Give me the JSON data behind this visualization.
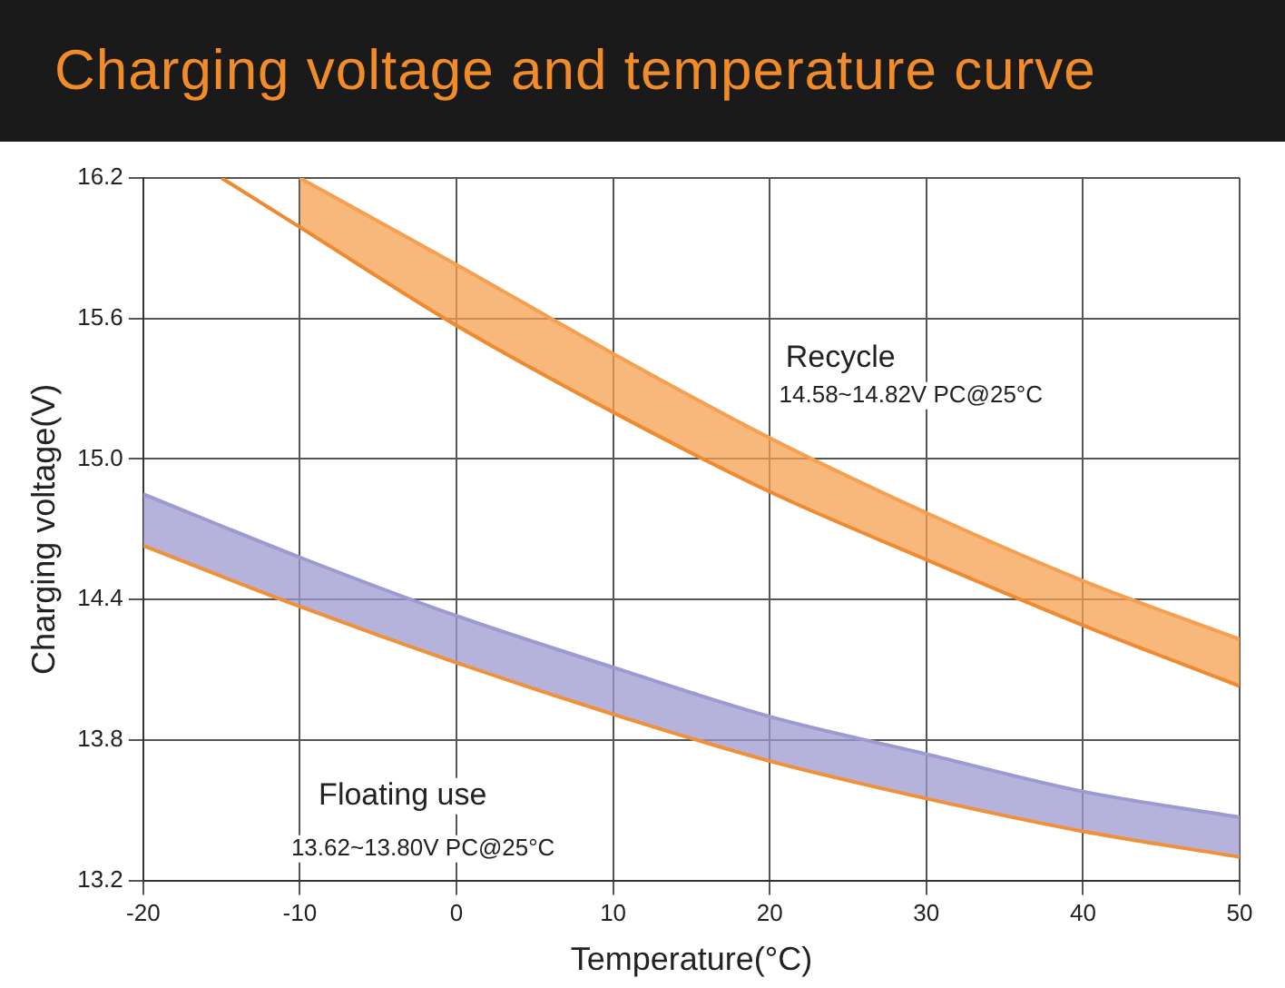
{
  "chart_data": {
    "type": "line",
    "title": "Charging voltage and temperature curve",
    "xlabel": "Temperature(°C)",
    "ylabel": "Charging voltage(V)",
    "xlim": [
      -20,
      50
    ],
    "xticks": [
      -20,
      -10,
      0,
      10,
      20,
      30,
      40,
      50
    ],
    "ylim": [
      13.2,
      16.2
    ],
    "yticks": [
      {
        "value": 13.2,
        "label": "13.2"
      },
      {
        "value": 13.8,
        "label": "13.8"
      },
      {
        "value": 14.4,
        "label": "14.4"
      },
      {
        "value": 15.0,
        "label": "15.0"
      },
      {
        "value": 15.6,
        "label": "15.6"
      },
      {
        "value": 16.2,
        "label": "16.2"
      }
    ],
    "grid": true,
    "legend": false,
    "marker": "none",
    "series": [
      {
        "type": "line",
        "color": "#f08a30",
        "x": [
          -15,
          -10,
          0,
          10,
          20,
          30,
          40,
          50
        ],
        "values": [
          16.2,
          15.99,
          15.57,
          15.2,
          14.86,
          14.57,
          14.29,
          14.03
        ]
      },
      {
        "type": "area",
        "color": "#f5a050",
        "x": [
          -10,
          0,
          10,
          20,
          30,
          40,
          50
        ],
        "values": [
          16.2,
          15.83,
          15.45,
          15.09,
          14.77,
          14.48,
          14.23
        ]
      },
      {
        "type": "line",
        "color": "#f0913a",
        "x": [
          -20,
          -10,
          0,
          10,
          20,
          30,
          40,
          50
        ],
        "values": [
          14.63,
          14.37,
          14.13,
          13.91,
          13.71,
          13.55,
          13.41,
          13.3
        ]
      },
      {
        "type": "area",
        "color": "#9c9ad0",
        "x": [
          -20,
          -10,
          0,
          10,
          20,
          30,
          40,
          50
        ],
        "values": [
          14.85,
          14.58,
          14.33,
          14.11,
          13.9,
          13.74,
          13.58,
          13.47
        ]
      }
    ],
    "annotations": [
      "Recycle",
      "14.58~14.82V PC@25°C",
      "Floating use",
      "13.62~13.80V PC@25°C"
    ]
  }
}
